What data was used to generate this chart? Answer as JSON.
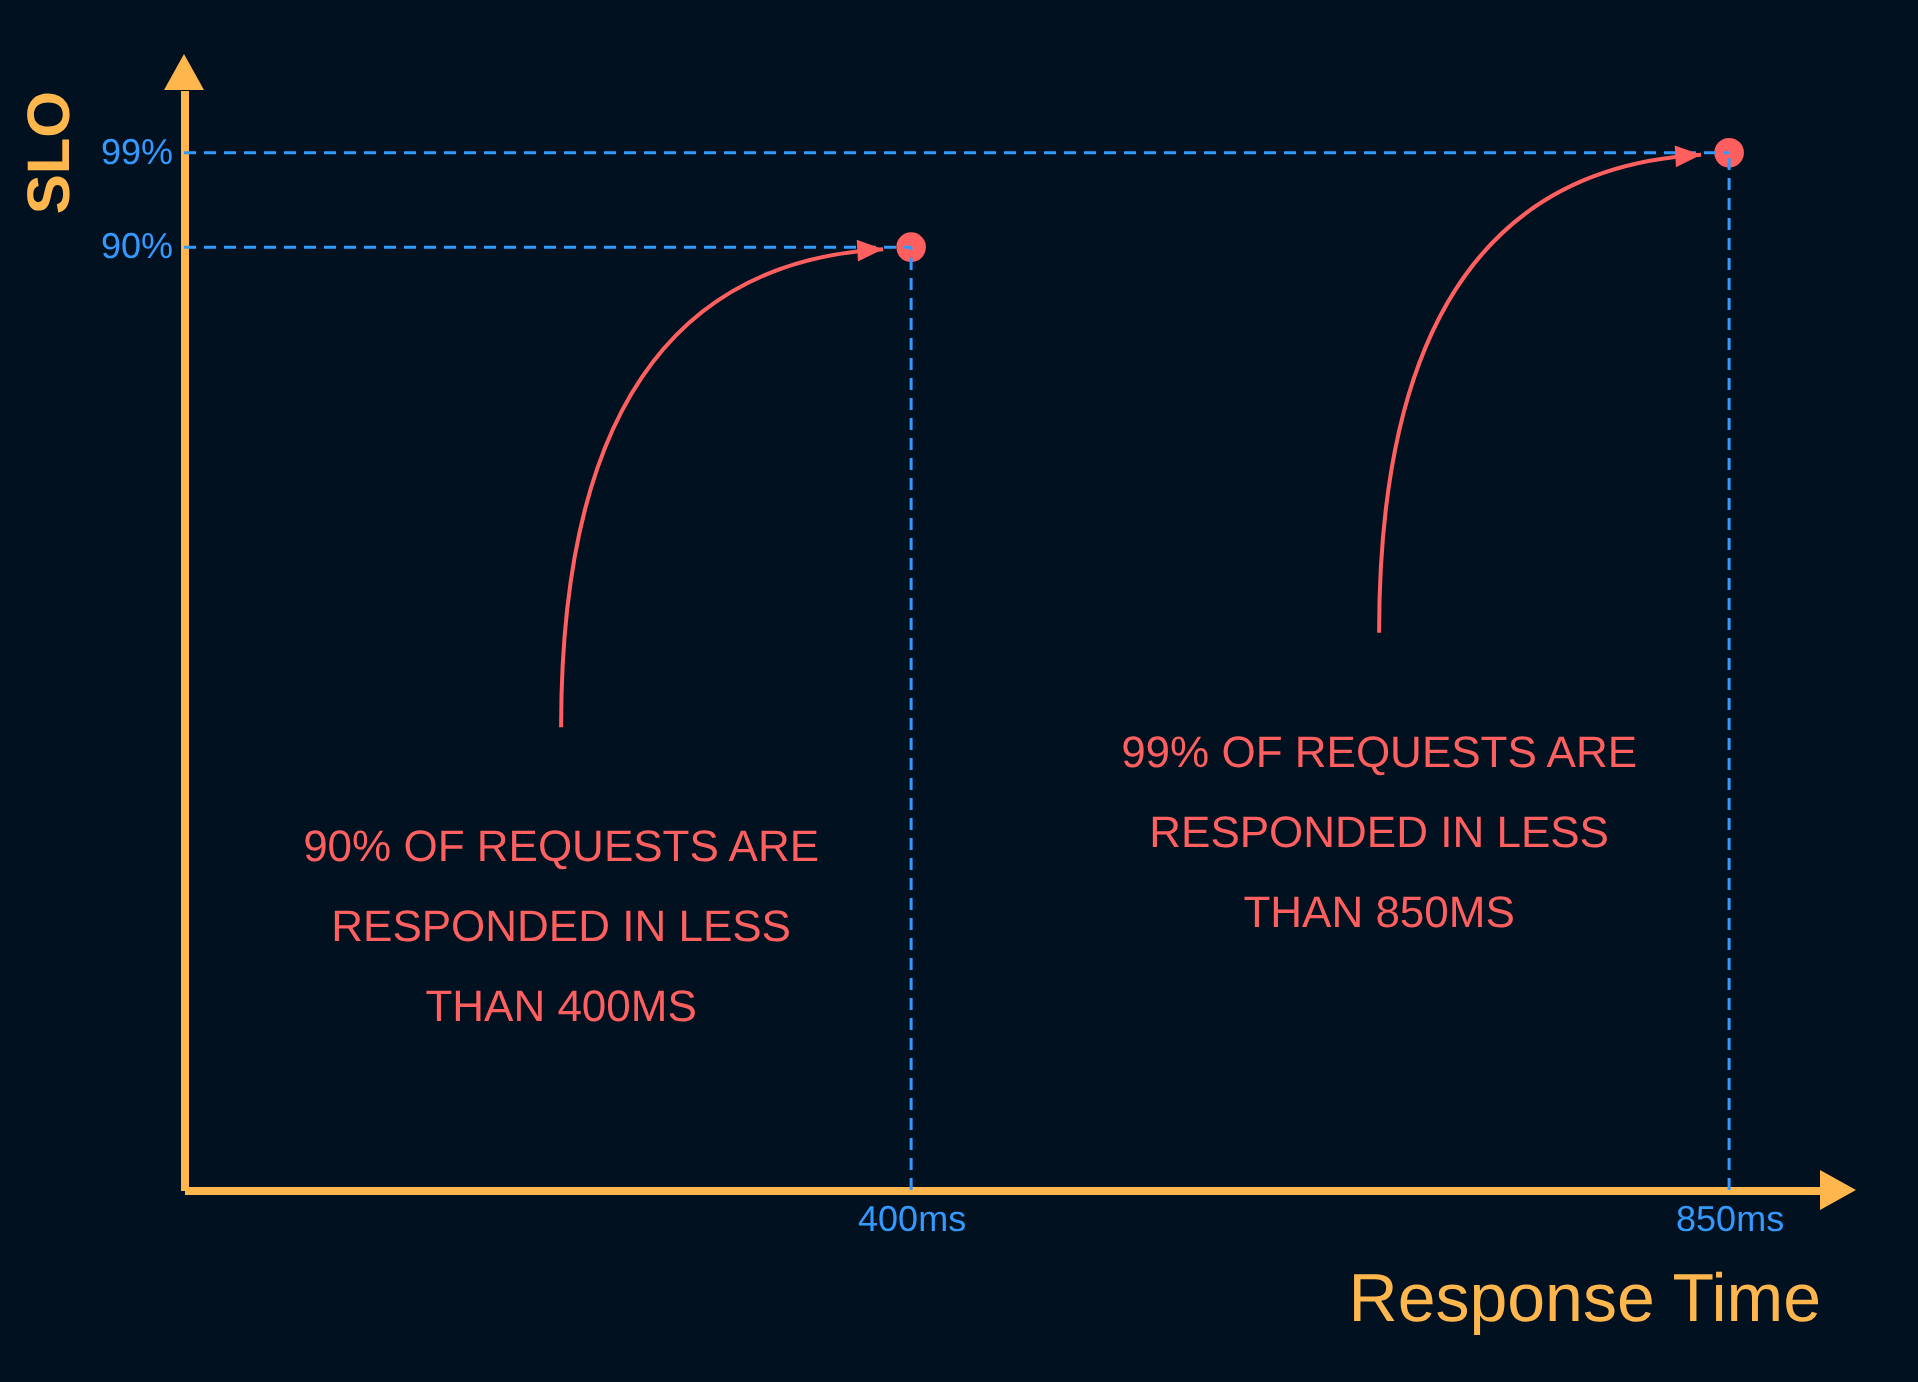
{
  "chart_data": {
    "type": "scatter",
    "xlabel": "Response Time",
    "ylabel": "SLO",
    "x": [
      400,
      850
    ],
    "series": [
      {
        "color": "#ff5f5f",
        "values": [
          90,
          99
        ]
      }
    ],
    "xlim": [
      0,
      900
    ],
    "ylim": [
      0,
      105
    ],
    "xticks": [
      {
        "value": 400,
        "label": "400ms"
      },
      {
        "value": 850,
        "label": "850ms"
      }
    ],
    "yticks": [
      {
        "value": 90,
        "label": "90%"
      },
      {
        "value": 99,
        "label": "99%"
      }
    ],
    "marker": "circle",
    "grid": false,
    "legend": false,
    "ref_lines": [
      {
        "axis": "x",
        "value": 400,
        "color": "#3399ff",
        "line_style": "dashed"
      },
      {
        "axis": "x",
        "value": 850,
        "color": "#3399ff",
        "line_style": "dashed"
      },
      {
        "axis": "y",
        "value": 90,
        "color": "#3399ff",
        "line_style": "dashed"
      },
      {
        "axis": "y",
        "value": 99,
        "color": "#3399ff",
        "line_style": "dashed"
      }
    ],
    "annotations": [
      "90% OF REQUESTS ARE RESPONDED IN LESS THAN 400MS",
      "99% OF REQUESTS ARE RESPONDED IN LESS THAN 850MS"
    ]
  }
}
